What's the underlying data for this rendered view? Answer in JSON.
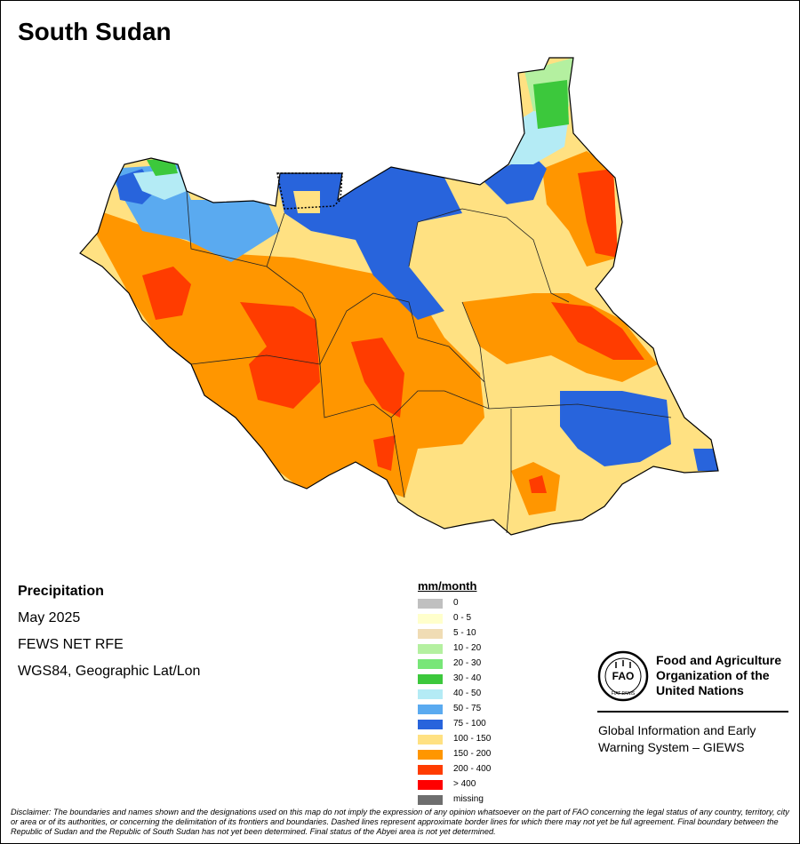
{
  "map_title": "South Sudan",
  "info": {
    "variable": "Precipitation",
    "period": "May 2025",
    "source": "FEWS NET RFE",
    "projection": "WGS84, Geographic Lat/Lon"
  },
  "legend": {
    "title": "mm/month",
    "items": [
      {
        "label": "0",
        "color": "#c0c0c0"
      },
      {
        "label": "0 - 5",
        "color": "#ffffcc"
      },
      {
        "label": "5 - 10",
        "color": "#f0dcb4"
      },
      {
        "label": "10 - 20",
        "color": "#b4f0a0"
      },
      {
        "label": "20 - 30",
        "color": "#78e678"
      },
      {
        "label": "30 - 40",
        "color": "#3cc83c"
      },
      {
        "label": "40 - 50",
        "color": "#b4ebf5"
      },
      {
        "label": "50 - 75",
        "color": "#5aaaf0"
      },
      {
        "label": "75 - 100",
        "color": "#2864dc"
      },
      {
        "label": "100 - 150",
        "color": "#ffe182"
      },
      {
        "label": "150 - 200",
        "color": "#ff9600"
      },
      {
        "label": "200 - 400",
        "color": "#ff3c00"
      },
      {
        "label": "> 400",
        "color": "#ff0000"
      },
      {
        "label": "missing",
        "color": "#6e6e6e"
      }
    ]
  },
  "organization": {
    "logo_text": "FAO",
    "logo_motto": "FIAT PANIS",
    "name_line1": "Food and Agriculture",
    "name_line2": "Organization of the",
    "name_line3": "United Nations",
    "system_line1": "Global Information and Early",
    "system_line2": "Warning System – GIEWS"
  },
  "disclaimer": "Disclaimer: The boundaries and names shown and the designations used on this map do not imply the expression of any opinion whatsoever on the part of FAO concerning the legal status of any country, territory, city or area or of its authorities, or concerning the delimitation of its frontiers and boundaries. Dashed lines represent approximate border lines for which there may not yet be full agreement.  Final boundary between the Republic of Sudan and the Republic of South Sudan has not yet been determined. Final status of the Abyei area is not yet determined."
}
